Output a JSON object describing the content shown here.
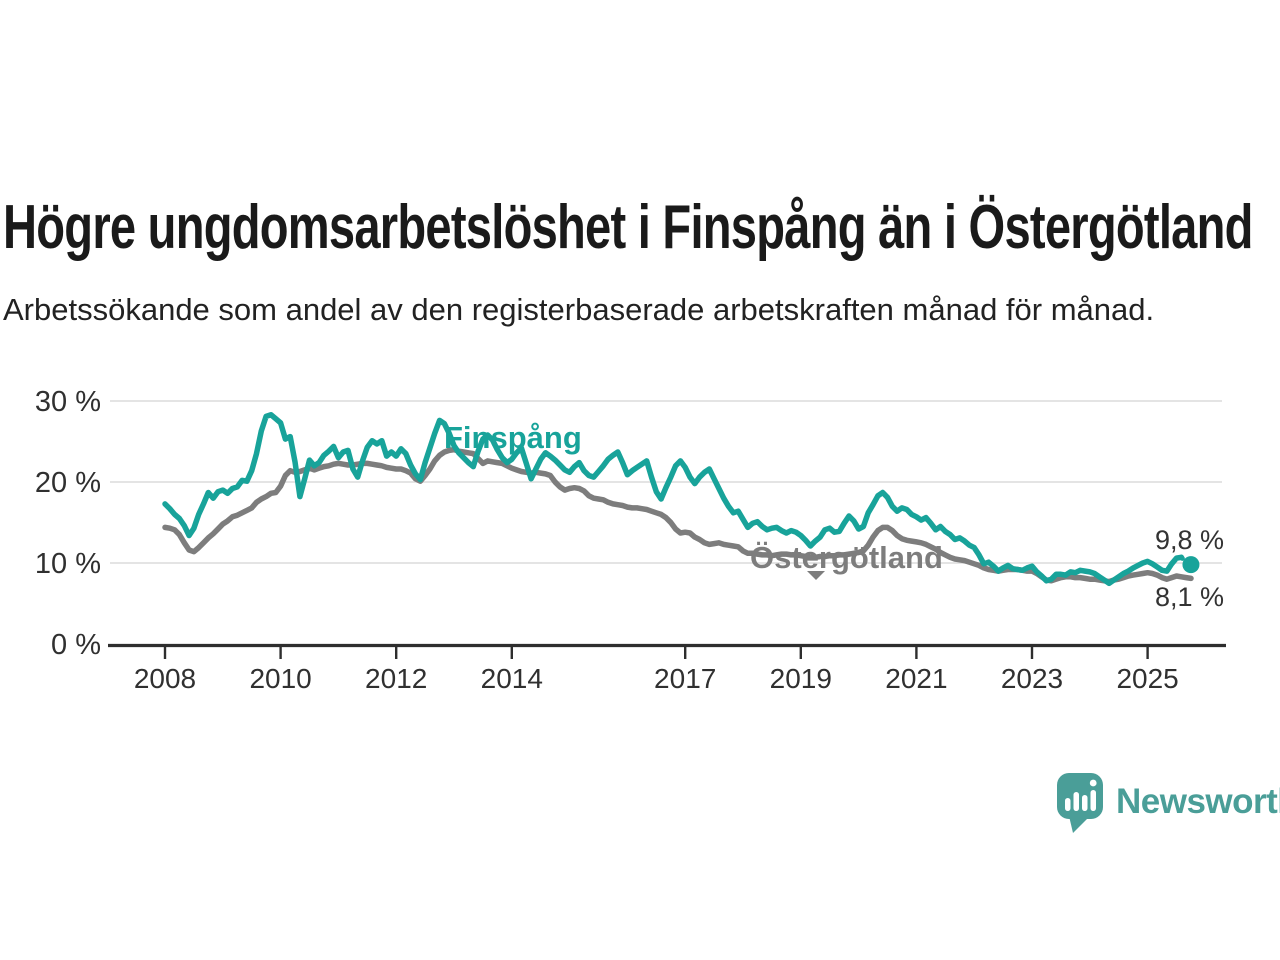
{
  "header": {
    "title": "Högre ungdomsarbetslöshet i Finspång än i Östergötland",
    "subtitle": "Arbetssökande som andel av den registerbaserade arbetskraften månad för månad."
  },
  "chart_data": {
    "type": "line",
    "title": "Högre ungdomsarbetslöshet i Finspång än i Östergötland",
    "subtitle": "Arbetssökande som andel av den registerbaserade arbetskraften månad för månad.",
    "frequency": "monthly",
    "x_start": {
      "year": 2008,
      "month": 1
    },
    "x_end": {
      "year": 2025,
      "month": 10
    },
    "ylim": [
      0,
      30
    ],
    "grid": "horizontal",
    "legend_position": "inline-labels",
    "y_tick_labels": [
      "30 %",
      "20 %",
      "10 %",
      "0 %"
    ],
    "y_tick_values": [
      30,
      20,
      10,
      0
    ],
    "x_tick_years": [
      2008,
      2010,
      2012,
      2014,
      2017,
      2019,
      2021,
      2023,
      2025
    ],
    "x_tick_labels": [
      "2008",
      "2010",
      "2012",
      "2014",
      "2017",
      "2019",
      "2021",
      "2023",
      "2025"
    ],
    "series": [
      {
        "name": "Östergötland",
        "color": "#7d7d7d",
        "last_value_label": "8,1 %",
        "values": [
          14.4,
          14.3,
          14.1,
          13.5,
          12.5,
          11.6,
          11.4,
          11.9,
          12.5,
          13.1,
          13.6,
          14.2,
          14.8,
          15.2,
          15.7,
          15.9,
          16.2,
          16.5,
          16.8,
          17.5,
          17.9,
          18.2,
          18.6,
          18.7,
          19.5,
          20.8,
          21.4,
          21.2,
          21.3,
          21.5,
          21.7,
          21.5,
          21.7,
          21.9,
          22.0,
          22.2,
          22.3,
          22.2,
          22.1,
          22.1,
          22.2,
          22.3,
          22.3,
          22.2,
          22.1,
          22.0,
          21.8,
          21.7,
          21.6,
          21.6,
          21.4,
          21.1,
          20.4,
          20.1,
          20.8,
          21.6,
          22.6,
          23.3,
          23.7,
          23.9,
          24.0,
          23.8,
          23.7,
          23.6,
          23.5,
          22.9,
          22.3,
          22.6,
          22.5,
          22.4,
          22.3,
          22.0,
          21.7,
          21.5,
          21.3,
          21.2,
          21.1,
          21.2,
          21.1,
          21.0,
          20.8,
          20.0,
          19.4,
          19.0,
          19.2,
          19.3,
          19.2,
          18.9,
          18.3,
          18.0,
          17.9,
          17.8,
          17.5,
          17.3,
          17.2,
          17.1,
          16.9,
          16.8,
          16.8,
          16.7,
          16.6,
          16.4,
          16.2,
          16.0,
          15.6,
          15.0,
          14.2,
          13.7,
          13.8,
          13.7,
          13.2,
          12.9,
          12.5,
          12.3,
          12.4,
          12.5,
          12.3,
          12.2,
          12.1,
          12.0,
          11.5,
          11.2,
          11.2,
          11.1,
          11.0,
          11.0,
          10.9,
          11.0,
          11.1,
          11.1,
          11.0,
          11.0,
          10.9,
          10.8,
          10.7,
          10.7,
          10.8,
          10.8,
          10.9,
          10.9,
          11.0,
          11.0,
          11.1,
          11.2,
          11.3,
          11.5,
          12.2,
          13.2,
          14.0,
          14.4,
          14.4,
          14.0,
          13.4,
          13.0,
          12.8,
          12.7,
          12.6,
          12.5,
          12.3,
          12.0,
          11.7,
          11.3,
          11.0,
          10.7,
          10.5,
          10.4,
          10.3,
          10.1,
          9.9,
          9.7,
          9.4,
          9.2,
          9.1,
          9.0,
          9.1,
          9.2,
          9.2,
          9.2,
          9.1,
          9.0,
          9.0,
          8.7,
          8.3,
          7.9,
          7.8,
          8.0,
          8.2,
          8.3,
          8.3,
          8.2,
          8.2,
          8.1,
          8.0,
          8.0,
          7.9,
          7.8,
          7.7,
          7.9,
          8.0,
          8.2,
          8.4,
          8.5,
          8.6,
          8.7,
          8.8,
          8.7,
          8.5,
          8.2,
          8.0,
          8.2,
          8.4,
          8.3,
          8.2,
          8.1
        ]
      },
      {
        "name": "Finspång",
        "color": "#18a39a",
        "last_value_label": "9,8 %",
        "last_segment_style": "dashed",
        "end_dot": true,
        "values": [
          17.3,
          16.7,
          16.0,
          15.5,
          14.6,
          13.4,
          14.3,
          16.0,
          17.3,
          18.7,
          18.0,
          18.8,
          19.0,
          18.6,
          19.2,
          19.4,
          20.2,
          20.1,
          21.4,
          23.5,
          26.3,
          28.1,
          28.3,
          27.8,
          27.3,
          25.3,
          25.6,
          22.5,
          18.2,
          20.4,
          22.7,
          22.0,
          22.4,
          23.3,
          23.8,
          24.4,
          23.0,
          23.7,
          23.9,
          21.6,
          20.6,
          22.6,
          24.3,
          25.1,
          24.7,
          25.1,
          23.2,
          23.7,
          23.2,
          24.1,
          23.5,
          22.1,
          21.0,
          20.3,
          22.4,
          24.2,
          26.0,
          27.6,
          27.2,
          26.0,
          24.5,
          23.6,
          23.0,
          22.4,
          21.9,
          23.8,
          25.3,
          25.8,
          25.2,
          24.0,
          23.0,
          22.4,
          22.8,
          23.6,
          24.2,
          22.3,
          20.4,
          21.6,
          22.8,
          23.6,
          23.2,
          22.7,
          22.1,
          21.5,
          21.2,
          21.9,
          22.4,
          21.4,
          20.8,
          20.6,
          21.3,
          22.0,
          22.8,
          23.3,
          23.7,
          22.4,
          20.9,
          21.4,
          21.8,
          22.2,
          22.6,
          20.6,
          18.8,
          17.9,
          19.3,
          20.6,
          22.0,
          22.6,
          21.8,
          20.6,
          19.8,
          20.6,
          21.2,
          21.6,
          20.4,
          19.2,
          18.0,
          17.0,
          16.2,
          16.4,
          15.4,
          14.4,
          14.9,
          15.1,
          14.5,
          14.1,
          14.3,
          14.4,
          14.0,
          13.7,
          14.0,
          13.8,
          13.4,
          12.8,
          12.1,
          12.7,
          13.2,
          14.1,
          14.3,
          13.8,
          13.9,
          14.9,
          15.8,
          15.2,
          14.2,
          14.5,
          16.2,
          17.2,
          18.3,
          18.7,
          18.1,
          17.0,
          16.4,
          16.8,
          16.6,
          16.0,
          15.7,
          15.3,
          15.6,
          14.9,
          14.1,
          14.5,
          13.9,
          13.5,
          12.9,
          13.1,
          12.7,
          12.2,
          11.9,
          11.0,
          9.9,
          10.1,
          9.6,
          9.0,
          9.4,
          9.7,
          9.3,
          9.2,
          9.1,
          9.4,
          9.6,
          8.9,
          8.4,
          7.8,
          8.0,
          8.6,
          8.6,
          8.5,
          8.9,
          8.8,
          9.1,
          9.0,
          8.9,
          8.7,
          8.3,
          7.9,
          7.5,
          7.9,
          8.3,
          8.7,
          9.0,
          9.4,
          9.7,
          10.0,
          10.2,
          9.9,
          9.5,
          9.1,
          9.0,
          9.9,
          10.6,
          10.7,
          10.1,
          9.8
        ]
      }
    ],
    "colors": {
      "finspang": "#18a39a",
      "ostergotland": "#7d7d7d",
      "gridline": "#dcdcdc",
      "axis": "#2e2e2e",
      "tick_label": "#303030",
      "annotation": "#333333"
    }
  },
  "annotations": {
    "finspang_label": "Finspång",
    "ostergotland_label": "Östergötland",
    "finspang_last": "9,8 %",
    "ostergotland_last": "8,1 %"
  },
  "branding": {
    "logo_text": "Newsworthy",
    "logo_icon": "bar-chart-speech-bubble-icon",
    "logo_color": "#4a9e98"
  }
}
